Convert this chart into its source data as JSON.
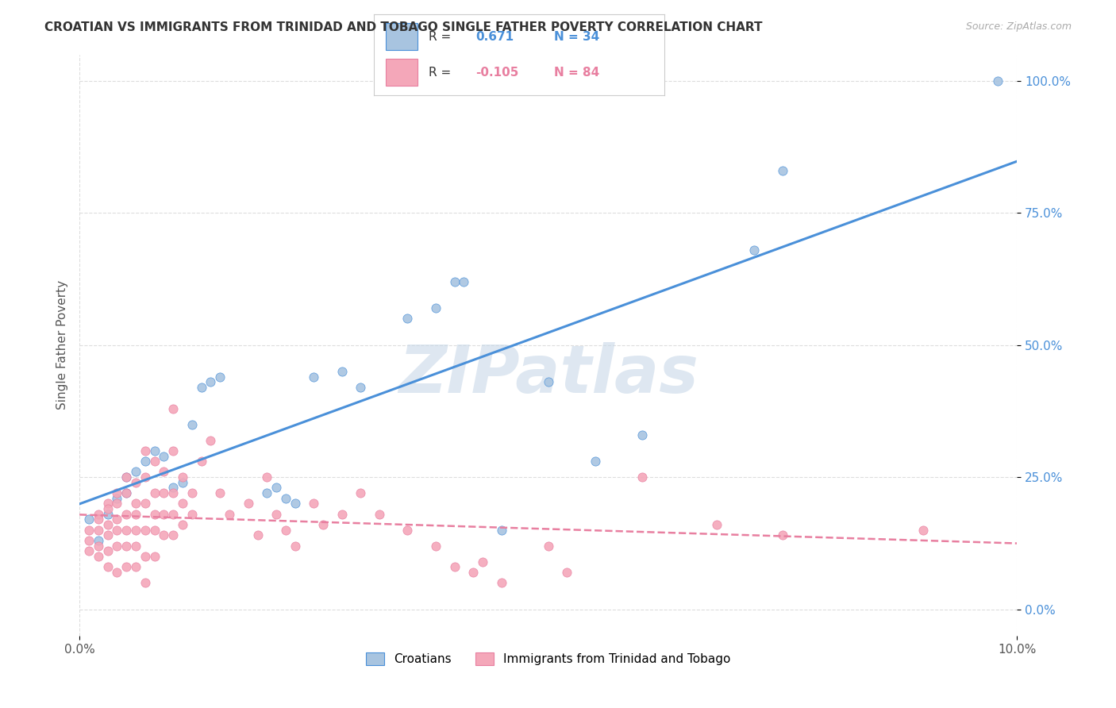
{
  "title": "CROATIAN VS IMMIGRANTS FROM TRINIDAD AND TOBAGO SINGLE FATHER POVERTY CORRELATION CHART",
  "source": "Source: ZipAtlas.com",
  "ylabel": "Single Father Poverty",
  "ytick_labels": [
    "0.0%",
    "25.0%",
    "50.0%",
    "75.0%",
    "100.0%"
  ],
  "ytick_values": [
    0,
    0.25,
    0.5,
    0.75,
    1.0
  ],
  "xmin": 0.0,
  "xmax": 0.1,
  "ymin": -0.05,
  "ymax": 1.05,
  "croatian_color": "#a8c4e0",
  "trinidad_color": "#f4a7b9",
  "trendline_croatian_color": "#4a90d9",
  "trendline_trinidad_color": "#e87fa0",
  "R_croatian": "0.671",
  "N_croatian": "34",
  "R_trinidad": "-0.105",
  "N_trinidad": "84",
  "watermark": "ZIPatlas",
  "watermark_color": "#c8d8e8",
  "croatian_scatter": [
    [
      0.001,
      0.17
    ],
    [
      0.002,
      0.13
    ],
    [
      0.003,
      0.18
    ],
    [
      0.004,
      0.21
    ],
    [
      0.005,
      0.22
    ],
    [
      0.005,
      0.25
    ],
    [
      0.006,
      0.26
    ],
    [
      0.007,
      0.28
    ],
    [
      0.008,
      0.3
    ],
    [
      0.009,
      0.29
    ],
    [
      0.01,
      0.23
    ],
    [
      0.011,
      0.24
    ],
    [
      0.012,
      0.35
    ],
    [
      0.013,
      0.42
    ],
    [
      0.014,
      0.43
    ],
    [
      0.015,
      0.44
    ],
    [
      0.02,
      0.22
    ],
    [
      0.021,
      0.23
    ],
    [
      0.022,
      0.21
    ],
    [
      0.023,
      0.2
    ],
    [
      0.025,
      0.44
    ],
    [
      0.028,
      0.45
    ],
    [
      0.03,
      0.42
    ],
    [
      0.035,
      0.55
    ],
    [
      0.038,
      0.57
    ],
    [
      0.04,
      0.62
    ],
    [
      0.041,
      0.62
    ],
    [
      0.045,
      0.15
    ],
    [
      0.05,
      0.43
    ],
    [
      0.055,
      0.28
    ],
    [
      0.06,
      0.33
    ],
    [
      0.072,
      0.68
    ],
    [
      0.075,
      0.83
    ],
    [
      0.098,
      1.0
    ]
  ],
  "trinidad_scatter": [
    [
      0.001,
      0.15
    ],
    [
      0.001,
      0.13
    ],
    [
      0.001,
      0.11
    ],
    [
      0.002,
      0.18
    ],
    [
      0.002,
      0.17
    ],
    [
      0.002,
      0.15
    ],
    [
      0.002,
      0.12
    ],
    [
      0.002,
      0.1
    ],
    [
      0.003,
      0.2
    ],
    [
      0.003,
      0.19
    ],
    [
      0.003,
      0.16
    ],
    [
      0.003,
      0.14
    ],
    [
      0.003,
      0.11
    ],
    [
      0.003,
      0.08
    ],
    [
      0.004,
      0.22
    ],
    [
      0.004,
      0.2
    ],
    [
      0.004,
      0.17
    ],
    [
      0.004,
      0.15
    ],
    [
      0.004,
      0.12
    ],
    [
      0.004,
      0.07
    ],
    [
      0.005,
      0.25
    ],
    [
      0.005,
      0.22
    ],
    [
      0.005,
      0.18
    ],
    [
      0.005,
      0.15
    ],
    [
      0.005,
      0.12
    ],
    [
      0.005,
      0.08
    ],
    [
      0.006,
      0.24
    ],
    [
      0.006,
      0.2
    ],
    [
      0.006,
      0.18
    ],
    [
      0.006,
      0.15
    ],
    [
      0.006,
      0.12
    ],
    [
      0.006,
      0.08
    ],
    [
      0.007,
      0.3
    ],
    [
      0.007,
      0.25
    ],
    [
      0.007,
      0.2
    ],
    [
      0.007,
      0.15
    ],
    [
      0.007,
      0.1
    ],
    [
      0.007,
      0.05
    ],
    [
      0.008,
      0.28
    ],
    [
      0.008,
      0.22
    ],
    [
      0.008,
      0.18
    ],
    [
      0.008,
      0.15
    ],
    [
      0.008,
      0.1
    ],
    [
      0.009,
      0.26
    ],
    [
      0.009,
      0.22
    ],
    [
      0.009,
      0.18
    ],
    [
      0.009,
      0.14
    ],
    [
      0.01,
      0.38
    ],
    [
      0.01,
      0.3
    ],
    [
      0.01,
      0.22
    ],
    [
      0.01,
      0.18
    ],
    [
      0.01,
      0.14
    ],
    [
      0.011,
      0.25
    ],
    [
      0.011,
      0.2
    ],
    [
      0.011,
      0.16
    ],
    [
      0.012,
      0.22
    ],
    [
      0.012,
      0.18
    ],
    [
      0.013,
      0.28
    ],
    [
      0.014,
      0.32
    ],
    [
      0.015,
      0.22
    ],
    [
      0.016,
      0.18
    ],
    [
      0.018,
      0.2
    ],
    [
      0.019,
      0.14
    ],
    [
      0.02,
      0.25
    ],
    [
      0.021,
      0.18
    ],
    [
      0.022,
      0.15
    ],
    [
      0.023,
      0.12
    ],
    [
      0.025,
      0.2
    ],
    [
      0.026,
      0.16
    ],
    [
      0.028,
      0.18
    ],
    [
      0.03,
      0.22
    ],
    [
      0.032,
      0.18
    ],
    [
      0.035,
      0.15
    ],
    [
      0.038,
      0.12
    ],
    [
      0.04,
      0.08
    ],
    [
      0.042,
      0.07
    ],
    [
      0.043,
      0.09
    ],
    [
      0.045,
      0.05
    ],
    [
      0.05,
      0.12
    ],
    [
      0.052,
      0.07
    ],
    [
      0.06,
      0.25
    ],
    [
      0.068,
      0.16
    ],
    [
      0.075,
      0.14
    ],
    [
      0.09,
      0.15
    ]
  ]
}
